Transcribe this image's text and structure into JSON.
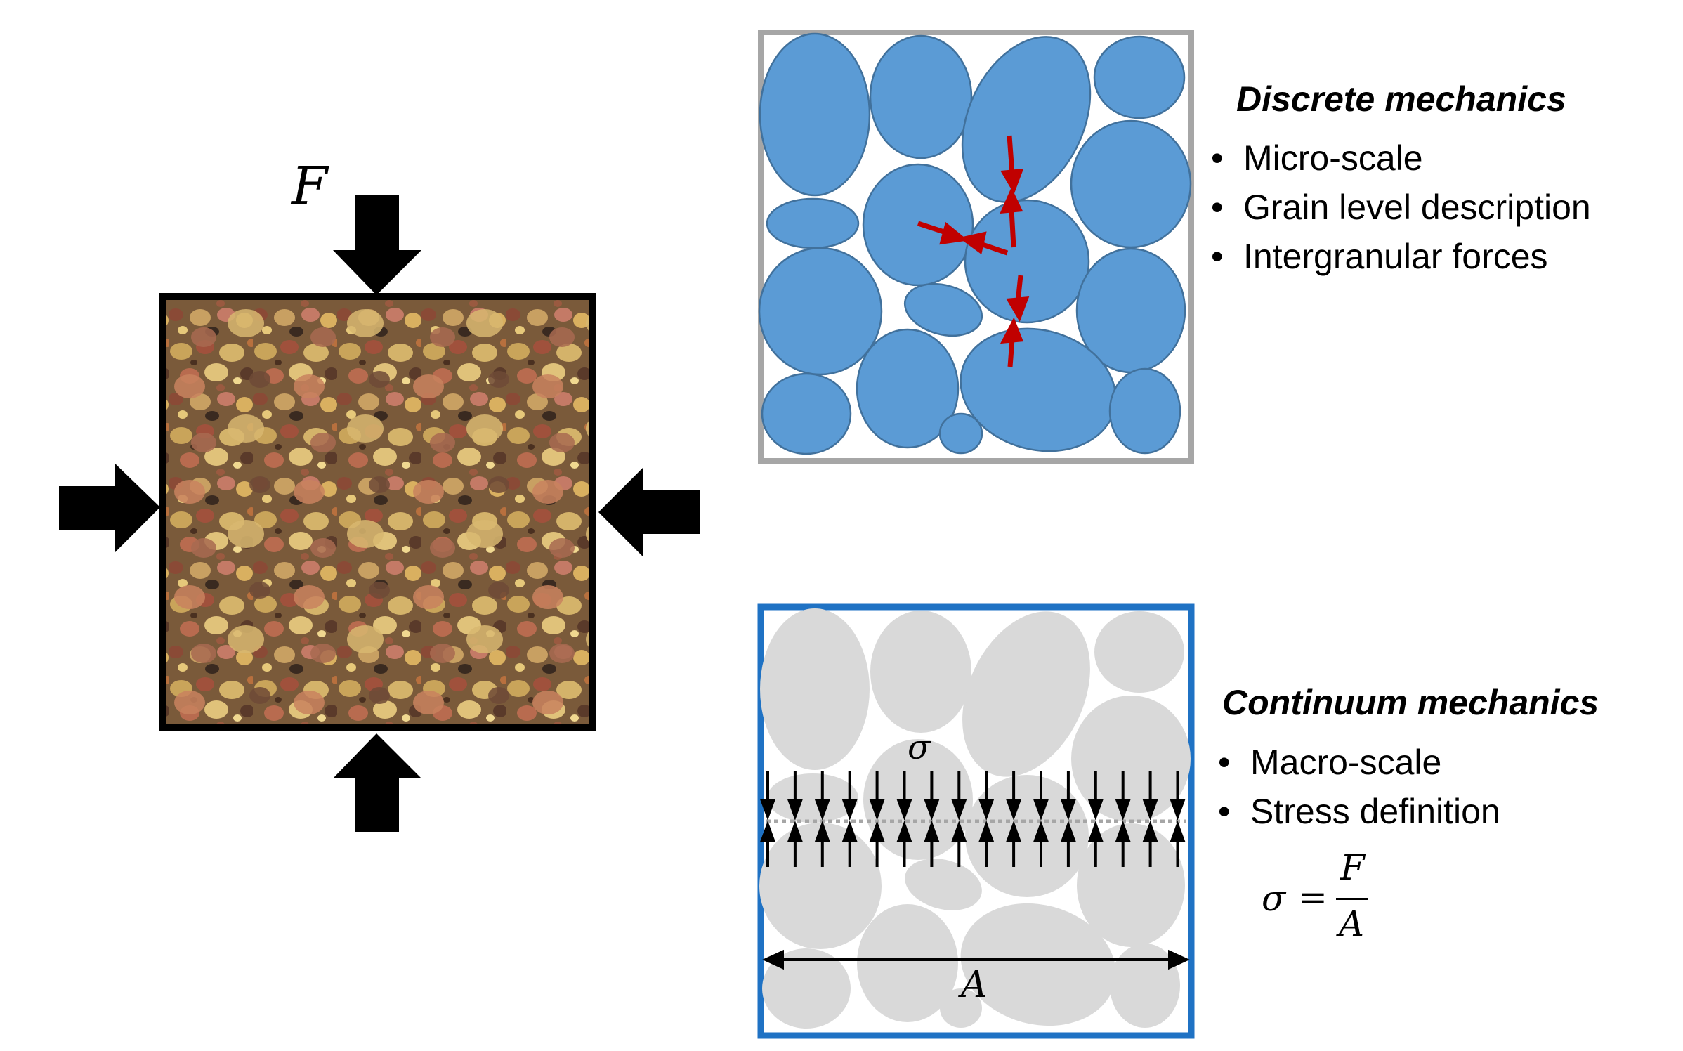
{
  "left_panel": {
    "force_label": "F"
  },
  "discrete": {
    "heading": "Discrete mechanics",
    "bullets": [
      "Micro-scale",
      "Grain level description",
      "Intergranular forces"
    ],
    "grain_color": "#5B9BD5",
    "frame_color": "#A6A6A6",
    "force_color": "#C00000"
  },
  "continuum": {
    "heading": "Continuum mechanics",
    "bullets": [
      "Macro-scale",
      "Stress definition"
    ],
    "stress_symbol": "σ",
    "area_symbol": "A",
    "formula": {
      "lhs": "σ",
      "eq": "=",
      "numerator": "F",
      "denominator": "A"
    },
    "grain_color": "#D9D9D9",
    "frame_color": "#1F72C4"
  }
}
